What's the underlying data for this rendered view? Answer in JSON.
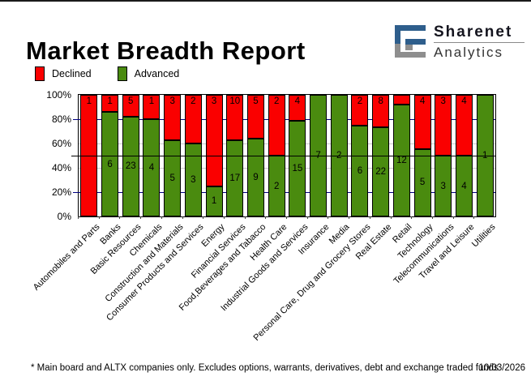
{
  "header": {
    "title": "Market Breadth Report",
    "logo": {
      "line1": "Sharenet",
      "line2": "Analytics"
    }
  },
  "legend": [
    {
      "label": "Declined",
      "color": "#fa0000"
    },
    {
      "label": "Advanced",
      "color": "#4a8b0f"
    }
  ],
  "footer": {
    "note": "* Main board and ALTX companies only. Excludes options, warrants, derivatives, debt and exchange traded funds",
    "date": "10/03/2026"
  },
  "chart_data": {
    "type": "bar",
    "stacked": true,
    "normalized_percent": true,
    "title": "Market Breadth Report",
    "xlabel": "",
    "ylabel": "",
    "ylim": [
      0,
      100
    ],
    "y_ticks": [
      "100%",
      "80%",
      "60%",
      "40%",
      "20%",
      "0%"
    ],
    "legend_position": "top-left",
    "categories": [
      "Automobiles and Parts",
      "Banks",
      "Basic Resources",
      "Chemicals",
      "Construction and Materials",
      "Consumer Products and Services",
      "Energy",
      "Financial Services",
      "Food,Beverages and Tabacco",
      "Health Care",
      "Industrial Goods and Services",
      "Insurance",
      "Media",
      "Personal Care, Drug and Grocery Stores",
      "Real Estate",
      "Retail",
      "Technology",
      "Telecommunications",
      "Travel and Leisure",
      "Utilities"
    ],
    "series": [
      {
        "name": "Declined",
        "color": "#fa0000",
        "values": [
          1,
          1,
          5,
          1,
          3,
          2,
          3,
          10,
          5,
          2,
          4,
          0,
          0,
          2,
          8,
          1,
          4,
          3,
          4,
          0
        ],
        "shown_labels": [
          "1",
          "1",
          "5",
          "1",
          "3",
          "2",
          "3",
          "10",
          "5",
          "2",
          "4",
          "",
          "",
          "2",
          "8",
          "",
          "4",
          "3",
          "4",
          ""
        ]
      },
      {
        "name": "Advanced",
        "color": "#4a8b0f",
        "values": [
          0,
          6,
          23,
          4,
          5,
          3,
          1,
          17,
          9,
          2,
          15,
          7,
          2,
          6,
          22,
          12,
          5,
          3,
          4,
          1
        ],
        "shown_labels": [
          "",
          "6",
          "23",
          "4",
          "5",
          "3",
          "1",
          "17",
          "9",
          "2",
          "15",
          "7",
          "2",
          "6",
          "22",
          "12",
          "5",
          "3",
          "4",
          "1"
        ]
      }
    ],
    "gridlines": [
      {
        "percent": 80,
        "color": "#000080"
      },
      {
        "percent": 60,
        "color": "#c9c9c9"
      },
      {
        "percent": 40,
        "color": "#c9c9c9"
      },
      {
        "percent": 20,
        "color": "#000080"
      }
    ],
    "midline": {
      "percent": 50,
      "color": "#000000"
    }
  },
  "logo_colors": {
    "blue": "#2e5e8c",
    "gray": "#8e8e8e"
  }
}
